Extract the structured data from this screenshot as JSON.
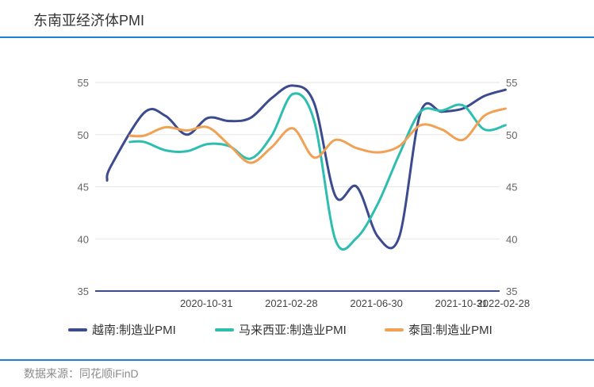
{
  "title": "东南亚经济体PMI",
  "source": "数据来源：同花顺iFinD",
  "chart_data": {
    "type": "line",
    "title": "东南亚经济体PMI",
    "ylim": [
      35,
      55
    ],
    "y_ticks": [
      35,
      40,
      45,
      50,
      55
    ],
    "x_tick_labels": [
      "2020-10-31",
      "2021-02-28",
      "2021-06-30",
      "2021-10-31",
      "2022-02-28"
    ],
    "grid": true,
    "legend_position": "bottom",
    "x": [
      "2020-06",
      "2020-07",
      "2020-08",
      "2020-09",
      "2020-10",
      "2020-11",
      "2020-12",
      "2021-01",
      "2021-02",
      "2021-03",
      "2021-04",
      "2021-05",
      "2021-06",
      "2021-07",
      "2021-08",
      "2021-09",
      "2021-10",
      "2021-11",
      "2021-12",
      "2022-01",
      "2022-02",
      "2022-03"
    ],
    "series": [
      {
        "name": "越南:制造业PMI",
        "color": "#3c4a8f",
        "values": [
          null,
          52.1,
          51.8,
          50.0,
          51.6,
          51.3,
          51.6,
          53.5,
          54.7,
          53.0,
          44.1,
          45.0,
          40.2,
          40.2,
          52.1,
          52.2,
          52.5,
          53.7,
          54.3,
          null,
          null,
          null
        ]
      },
      {
        "name": "马来西亚:制造业PMI",
        "color": "#2ebeb0",
        "values": [
          null,
          49.3,
          48.5,
          48.4,
          49.1,
          48.9,
          47.7,
          49.9,
          53.9,
          51.3,
          39.9,
          40.1,
          43.4,
          48.1,
          52.2,
          52.3,
          52.8,
          50.5,
          50.9,
          null,
          null,
          null
        ]
      },
      {
        "name": "泰国:制造业PMI",
        "color": "#f0a154",
        "values": [
          null,
          49.9,
          50.7,
          50.4,
          50.7,
          49.0,
          47.3,
          48.8,
          50.6,
          47.8,
          49.5,
          48.7,
          48.3,
          48.9,
          50.9,
          50.5,
          49.5,
          51.8,
          52.5,
          null,
          null,
          null
        ]
      }
    ]
  }
}
